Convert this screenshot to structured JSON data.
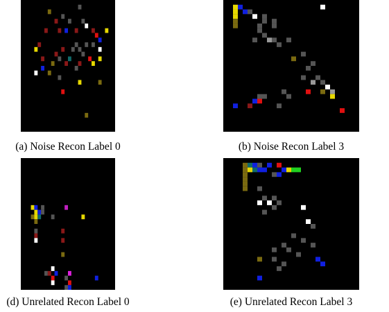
{
  "figure": {
    "panels": [
      {
        "caption": "(a) Noise Recon Label 0"
      },
      {
        "caption": "(b) Noise Recon Label 3"
      },
      {
        "caption": "(d) Unrelated Recon Label 0"
      },
      {
        "caption": "(e) Unrelated Recon Label 3"
      }
    ]
  }
}
